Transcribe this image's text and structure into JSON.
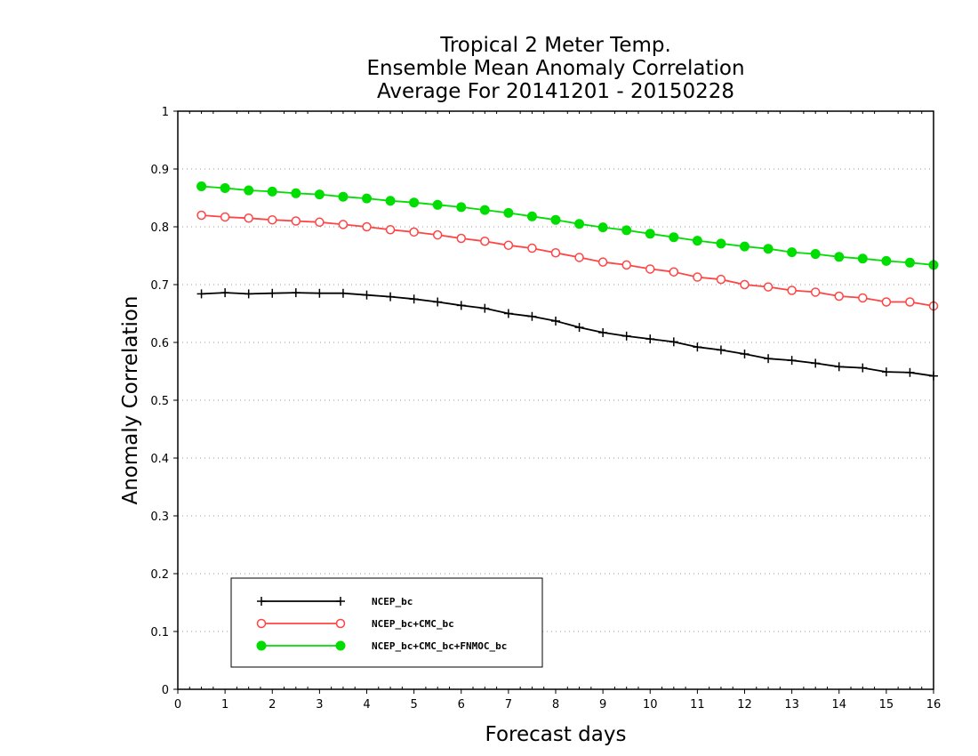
{
  "chart_data": {
    "type": "line",
    "title_lines": [
      "Tropical 2 Meter Temp.",
      "Ensemble Mean Anomaly Correlation",
      "Average For 20141201 - 20150228"
    ],
    "xlabel": "Forecast days",
    "ylabel": "Anomaly Correlation",
    "xlim": [
      0,
      16
    ],
    "ylim": [
      0,
      1
    ],
    "x_ticks": [
      "0",
      "1",
      "2",
      "3",
      "4",
      "5",
      "6",
      "7",
      "8",
      "9",
      "10",
      "11",
      "12",
      "13",
      "14",
      "15",
      "16"
    ],
    "y_ticks": [
      "0",
      "0.1",
      "0.2",
      "0.3",
      "0.4",
      "0.5",
      "0.6",
      "0.7",
      "0.8",
      "0.9",
      "1"
    ],
    "grid": "horizontal-dotted",
    "legend_position": "bottom-left",
    "x": [
      0.5,
      1,
      1.5,
      2,
      2.5,
      3,
      3.5,
      4,
      4.5,
      5,
      5.5,
      6,
      6.5,
      7,
      7.5,
      8,
      8.5,
      9,
      9.5,
      10,
      10.5,
      11,
      11.5,
      12,
      12.5,
      13,
      13.5,
      14,
      14.5,
      15,
      15.5,
      16
    ],
    "series": [
      {
        "name": "NCEP_bc",
        "color": "#000000",
        "marker": "plus",
        "values": [
          0.684,
          0.686,
          0.684,
          0.685,
          0.686,
          0.685,
          0.685,
          0.682,
          0.679,
          0.675,
          0.67,
          0.664,
          0.659,
          0.65,
          0.645,
          0.637,
          0.626,
          0.617,
          0.611,
          0.606,
          0.601,
          0.592,
          0.587,
          0.58,
          0.572,
          0.569,
          0.564,
          0.558,
          0.556,
          0.549,
          0.548,
          0.542
        ]
      },
      {
        "name": "NCEP_bc+CMC_bc",
        "color": "#ff4444",
        "marker": "open-circle",
        "values": [
          0.82,
          0.817,
          0.815,
          0.812,
          0.81,
          0.808,
          0.804,
          0.8,
          0.795,
          0.791,
          0.786,
          0.78,
          0.775,
          0.768,
          0.763,
          0.755,
          0.747,
          0.739,
          0.734,
          0.727,
          0.722,
          0.713,
          0.709,
          0.7,
          0.696,
          0.69,
          0.687,
          0.68,
          0.677,
          0.67,
          0.67,
          0.663
        ]
      },
      {
        "name": "NCEP_bc+CMC_bc+FNMOC_bc",
        "color": "#00dd00",
        "marker": "filled-circle",
        "values": [
          0.87,
          0.867,
          0.863,
          0.861,
          0.858,
          0.856,
          0.852,
          0.849,
          0.845,
          0.842,
          0.838,
          0.834,
          0.829,
          0.824,
          0.818,
          0.812,
          0.805,
          0.799,
          0.794,
          0.788,
          0.782,
          0.776,
          0.771,
          0.766,
          0.762,
          0.756,
          0.753,
          0.748,
          0.745,
          0.741,
          0.738,
          0.734
        ]
      }
    ]
  }
}
